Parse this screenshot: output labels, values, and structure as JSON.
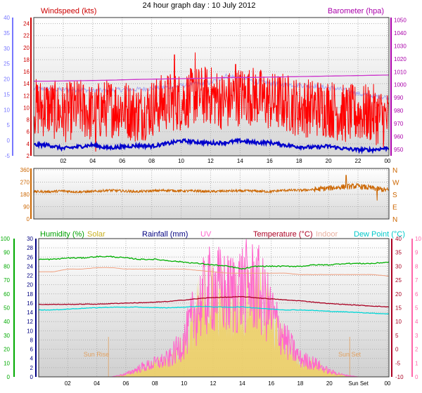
{
  "page_title": "24 hour graph day : 10 July 2012",
  "colors": {
    "wind": "#ff0000",
    "avg_wind": "#0000cc",
    "gust": "#a8a8f0",
    "pressure": "#cc33cc",
    "direction": "#cc6600",
    "humidity": "#00b000",
    "solar": "#f0d060",
    "rain": "#000080",
    "uv": "#ff66cc",
    "temperature": "#aa0022",
    "indoor": "#f0a080",
    "dewpoint": "#00d8d8",
    "wind_axis": "#cc0000",
    "gust_axis": "#7777ff",
    "baro_axis": "#aa00aa",
    "hum_axis": "#00aa00",
    "uv_axis": "#ff66aa"
  },
  "x_ticks": [
    "02",
    "04",
    "06",
    "08",
    "10",
    "12",
    "14",
    "16",
    "18",
    "20",
    "22",
    "00"
  ],
  "x_ticks_bottom": [
    "02",
    "04",
    "06",
    "08",
    "10",
    "12",
    "14",
    "16",
    "18",
    "20",
    "Sun Set",
    "00"
  ],
  "chart_data": [
    {
      "type": "line",
      "id": "wind",
      "title": "24 hour graph day : 10 July 2012",
      "labels": {
        "windspeed": "Windspeed (kts)",
        "barometer": "Barometer (hpa)"
      },
      "axes": {
        "left_inner": {
          "label": "Windspeed (kts)",
          "range": [
            2,
            25
          ],
          "ticks": [
            2,
            4,
            6,
            8,
            10,
            12,
            14,
            16,
            18,
            20,
            22,
            24
          ]
        },
        "left_outer": {
          "range": [
            -5,
            40
          ],
          "ticks": [
            -5,
            0,
            5,
            10,
            15,
            20,
            25,
            30,
            35,
            40
          ]
        },
        "right": {
          "label": "Barometer (hpa)",
          "range": [
            945,
            1052
          ],
          "ticks": [
            950,
            960,
            970,
            980,
            990,
            1000,
            1010,
            1020,
            1030,
            1040,
            1050
          ]
        }
      },
      "x": {
        "hours": [
          1,
          2,
          3,
          4,
          5,
          6,
          7,
          8,
          9,
          10,
          11,
          12,
          13,
          14,
          15,
          16,
          17,
          18,
          19,
          20,
          21,
          22,
          23,
          24
        ],
        "range": [
          0,
          24.1
        ]
      },
      "series": [
        {
          "key": "wind",
          "values": [
            10,
            9,
            10,
            9,
            10,
            10,
            9,
            10,
            11,
            11,
            12,
            12,
            11,
            12,
            12,
            11,
            11,
            10,
            10,
            10,
            9,
            9,
            9,
            8
          ]
        },
        {
          "key": "avg_wind",
          "values": [
            3.8,
            3.2,
            3.5,
            3.8,
            3.3,
            3.5,
            3.7,
            3.6,
            4.0,
            4.5,
            4.3,
            4.1,
            4.2,
            4.5,
            4.2,
            4.2,
            3.8,
            3.5,
            3.4,
            3.6,
            3.2,
            3.0,
            3.0,
            3.3
          ]
        },
        {
          "key": "gust",
          "values": [
            16.8,
            16.5,
            16.6,
            16.2,
            16.3,
            16.5,
            16.6,
            17.0,
            17.3,
            17.8,
            18.5,
            18.8,
            21.0,
            20.5,
            19.2,
            18.7,
            18.2,
            18.0,
            17.8,
            17.2,
            16.5,
            15.2,
            14.5,
            14.0
          ]
        },
        {
          "key": "pressure",
          "values": [
            1002.8,
            1002.9,
            1003.1,
            1003.3,
            1003.5,
            1003.8,
            1004.1,
            1004.3,
            1004.5,
            1004.7,
            1004.9,
            1005.2,
            1005.5,
            1005.6,
            1005.7,
            1005.9,
            1006.1,
            1006.3,
            1006.5,
            1006.7,
            1006.9,
            1007.1,
            1007.3,
            1007.5
          ]
        }
      ],
      "wind_peaks": [
        {
          "hour": 10.95,
          "value": 19.2
        },
        {
          "hour": 9.55,
          "value": 18.8
        },
        {
          "hour": 13.7,
          "value": 17.2
        },
        {
          "hour": 4.2,
          "value": 2.7
        }
      ]
    },
    {
      "type": "line",
      "id": "direction",
      "axes": {
        "left": {
          "range": [
            0,
            370
          ],
          "ticks": [
            0,
            90,
            180,
            270,
            360
          ]
        },
        "right": {
          "labels": [
            "N",
            "W",
            "S",
            "E",
            "N"
          ]
        }
      },
      "series": [
        {
          "key": "direction",
          "values": [
            200,
            205,
            198,
            200,
            210,
            205,
            200,
            205,
            210,
            205,
            205,
            200,
            205,
            205,
            205,
            200,
            210,
            210,
            215,
            225,
            235,
            240,
            225,
            210
          ]
        }
      ],
      "spikes": [
        {
          "hour": 21.2,
          "value": 320
        },
        {
          "hour": 23.3,
          "value": 135
        }
      ]
    },
    {
      "type": "line",
      "id": "weather",
      "labels": {
        "humidity": "Humidity (%)",
        "solar": "Solar",
        "rainfall": "Rainfall (mm)",
        "uv": "UV",
        "temperature": "Temperature (°C)",
        "indoor": "Indoor",
        "dewpoint": "Dew Point (°C)",
        "sun_rise": "Sun Rise",
        "sun_set": "Sun Set"
      },
      "axes": {
        "humidity": {
          "range": [
            0,
            100
          ],
          "ticks": [
            0,
            10,
            20,
            30,
            40,
            50,
            60,
            70,
            80,
            90,
            100
          ]
        },
        "rainfall": {
          "range": [
            0,
            30
          ],
          "ticks": [
            0,
            2,
            4,
            6,
            8,
            10,
            12,
            14,
            16,
            18,
            20,
            22,
            24,
            26,
            28,
            30
          ]
        },
        "temperature": {
          "range": [
            -10,
            40
          ],
          "ticks": [
            -10,
            -5,
            0,
            5,
            10,
            15,
            20,
            25,
            30,
            35,
            40
          ]
        },
        "uv": {
          "range": [
            0,
            10
          ],
          "ticks": [
            0,
            1,
            2,
            3,
            4,
            5,
            6,
            7,
            8,
            9,
            10
          ]
        }
      },
      "sun_rise_hour": 4.8,
      "sun_set_hour": 21.4,
      "series": [
        {
          "key": "humidity",
          "values": [
            85,
            86,
            86,
            87,
            87,
            86,
            85,
            85,
            84,
            83,
            82,
            81,
            80,
            78,
            80,
            80,
            80,
            80,
            81,
            81,
            82,
            82,
            82,
            83
          ]
        },
        {
          "key": "indoor",
          "values": [
            28,
            29,
            29,
            29.5,
            29.5,
            29,
            29,
            29,
            29,
            29,
            28.5,
            28,
            27.5,
            27.5,
            27.5,
            27.5,
            27.5,
            27,
            27,
            27,
            27,
            27,
            27,
            26.5
          ]
        },
        {
          "key": "temperature",
          "values": [
            16.2,
            16.2,
            16.3,
            16.3,
            16.5,
            16.7,
            16.8,
            17.0,
            17.3,
            17.8,
            18.3,
            18.7,
            18.8,
            19.0,
            18.6,
            18.2,
            17.8,
            17.5,
            17.0,
            16.5,
            16.2,
            15.9,
            15.6,
            15.3
          ]
        },
        {
          "key": "dewpoint",
          "values": [
            14.2,
            14.5,
            14.8,
            15.0,
            15.2,
            15.2,
            15.2,
            15.0,
            15.0,
            15.2,
            15.5,
            15.3,
            15.2,
            15.3,
            14.9,
            14.5,
            14.2,
            14.2,
            14.0,
            13.7,
            13.5,
            13.3,
            13.0,
            12.8
          ]
        },
        {
          "key": "solar_uv",
          "values": [
            0,
            0,
            0,
            0,
            0,
            0.3,
            1.0,
            1.5,
            2.0,
            4.0,
            8.0,
            10.0,
            9.0,
            10.0,
            10.0,
            7.0,
            4.0,
            2.0,
            1.5,
            0.6,
            0.2,
            0,
            0,
            0
          ]
        }
      ]
    }
  ]
}
